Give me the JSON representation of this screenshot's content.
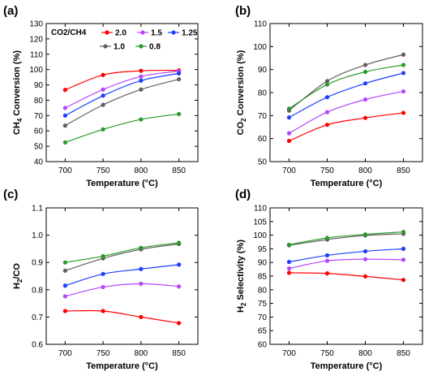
{
  "colors": {
    "2.0": "#ff0000",
    "1.5": "#b446ff",
    "1.25": "#1f3fff",
    "1.0": "#606060",
    "0.8": "#2a9a2a"
  },
  "legend": {
    "title": "CO2/CH4",
    "entries": [
      "2.0",
      "1.5",
      "1.25",
      "1.0",
      "0.8"
    ]
  },
  "chart_data": [
    {
      "type": "line",
      "panel": "(a)",
      "x": [
        700,
        750,
        800,
        850
      ],
      "xlabel": "Temperature (°C)",
      "ylabel": "CH4 Conversion (%)",
      "ylim": [
        40,
        130
      ],
      "yticks": [
        "40",
        "50",
        "60",
        "70",
        "80",
        "90",
        "100",
        "110",
        "120",
        "130"
      ],
      "xticks": [
        "700",
        "750",
        "800",
        "850"
      ],
      "series": [
        {
          "name": "2.0",
          "values": [
            86.8,
            96.5,
            99.2,
            99.5
          ]
        },
        {
          "name": "1.5",
          "values": [
            75.0,
            87.0,
            95.5,
            99.0
          ]
        },
        {
          "name": "1.25",
          "values": [
            70.0,
            83.0,
            92.8,
            97.5
          ]
        },
        {
          "name": "1.0",
          "values": [
            63.5,
            77.0,
            87.0,
            93.7
          ]
        },
        {
          "name": "0.8",
          "values": [
            52.5,
            61.0,
            67.5,
            71.0
          ]
        }
      ]
    },
    {
      "type": "line",
      "panel": "(b)",
      "x": [
        700,
        750,
        800,
        850
      ],
      "xlabel": "Temperature (°C)",
      "ylabel": "CO2 Conversion (%)",
      "ylim": [
        50,
        110
      ],
      "yticks": [
        "50",
        "60",
        "70",
        "80",
        "90",
        "100",
        "110"
      ],
      "xticks": [
        "700",
        "750",
        "800",
        "850"
      ],
      "series": [
        {
          "name": "2.0",
          "values": [
            59.0,
            66.0,
            69.0,
            71.2
          ]
        },
        {
          "name": "1.5",
          "values": [
            62.3,
            71.5,
            77.0,
            80.5
          ]
        },
        {
          "name": "1.25",
          "values": [
            69.2,
            78.0,
            84.0,
            88.5
          ]
        },
        {
          "name": "1.0",
          "values": [
            72.2,
            85.0,
            92.0,
            96.5
          ]
        },
        {
          "name": "0.8",
          "values": [
            73.0,
            83.5,
            89.0,
            92.0
          ]
        }
      ]
    },
    {
      "type": "line",
      "panel": "(c)",
      "x": [
        700,
        750,
        800,
        850
      ],
      "xlabel": "Temperature (°C)",
      "ylabel": "H2/CO",
      "ylim": [
        0.6,
        1.1
      ],
      "yticks": [
        "0.6",
        "0.7",
        "0.8",
        "0.9",
        "1.0",
        "1.1"
      ],
      "xticks": [
        "700",
        "750",
        "800",
        "850"
      ],
      "series": [
        {
          "name": "2.0",
          "values": [
            0.722,
            0.722,
            0.7,
            0.678
          ]
        },
        {
          "name": "1.5",
          "values": [
            0.776,
            0.81,
            0.822,
            0.812
          ]
        },
        {
          "name": "1.25",
          "values": [
            0.815,
            0.858,
            0.876,
            0.892
          ]
        },
        {
          "name": "1.0",
          "values": [
            0.87,
            0.915,
            0.948,
            0.968
          ]
        },
        {
          "name": "0.8",
          "values": [
            0.9,
            0.923,
            0.954,
            0.972
          ]
        }
      ]
    },
    {
      "type": "line",
      "panel": "(d)",
      "x": [
        700,
        750,
        800,
        850
      ],
      "xlabel": "Temperature (°C)",
      "ylabel": "H2 Selectivity (%)",
      "ylim": [
        60,
        110
      ],
      "yticks": [
        "60",
        "65",
        "70",
        "75",
        "80",
        "85",
        "90",
        "95",
        "100",
        "105",
        "110"
      ],
      "xticks": [
        "700",
        "750",
        "800",
        "850"
      ],
      "series": [
        {
          "name": "2.0",
          "values": [
            86.2,
            86.0,
            84.9,
            83.6
          ]
        },
        {
          "name": "1.5",
          "values": [
            87.8,
            90.6,
            91.2,
            91.0
          ]
        },
        {
          "name": "1.25",
          "values": [
            90.2,
            92.6,
            94.1,
            95.0
          ]
        },
        {
          "name": "1.0",
          "values": [
            96.3,
            98.4,
            99.9,
            100.5
          ]
        },
        {
          "name": "0.8",
          "values": [
            96.5,
            99.0,
            100.3,
            101.2
          ]
        }
      ]
    }
  ]
}
